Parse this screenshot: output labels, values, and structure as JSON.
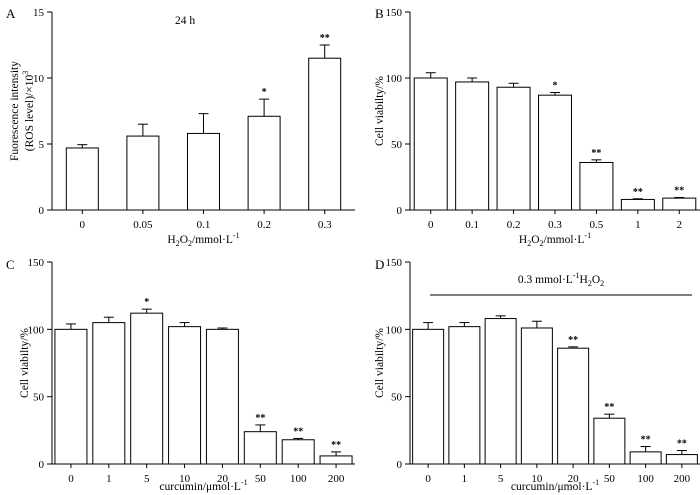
{
  "chart_data": [
    {
      "panel": "A",
      "type": "bar",
      "annotation": "24 h",
      "ylabel_lines": [
        "Fuorescence intensity",
        "(ROS level)/×10"
      ],
      "ylabel_sup": "3",
      "xlabel": {
        "parts": [
          {
            "t": "H"
          },
          {
            "t": "2",
            "sub": true
          },
          {
            "t": "O"
          },
          {
            "t": "2",
            "sub": true
          },
          {
            "t": "/mmol·L"
          },
          {
            "t": "-1",
            "sup": true
          }
        ]
      },
      "categories": [
        "0",
        "0.05",
        "0.1",
        "0.2",
        "0.3"
      ],
      "values": [
        4.7,
        5.6,
        5.8,
        7.1,
        11.5
      ],
      "errors": [
        0.25,
        0.9,
        1.5,
        1.3,
        1.0
      ],
      "significance": [
        "",
        "",
        "",
        "*",
        "**"
      ],
      "ylim": [
        0,
        15
      ],
      "yticks": [
        0,
        5,
        10,
        15
      ]
    },
    {
      "panel": "B",
      "type": "bar",
      "ylabel_lines": [
        "Cell viabilty/%"
      ],
      "xlabel": {
        "parts": [
          {
            "t": "H"
          },
          {
            "t": "2",
            "sub": true
          },
          {
            "t": "O"
          },
          {
            "t": "2",
            "sub": true
          },
          {
            "t": "/mmol·L"
          },
          {
            "t": "-1",
            "sup": true
          }
        ]
      },
      "categories": [
        "0",
        "0.1",
        "0.2",
        "0.3",
        "0.5",
        "1",
        "2"
      ],
      "values": [
        100,
        97,
        93,
        87,
        36,
        8,
        9
      ],
      "errors": [
        4,
        3,
        3,
        2,
        2,
        0.5,
        0.5
      ],
      "significance": [
        "",
        "",
        "",
        "*",
        "**",
        "**",
        "**"
      ],
      "ylim": [
        0,
        150
      ],
      "yticks": [
        0,
        50,
        100,
        150
      ]
    },
    {
      "panel": "C",
      "type": "bar",
      "ylabel_lines": [
        "Cell viabilty/%"
      ],
      "xlabel": {
        "parts": [
          {
            "t": "curcumin/μmol·L"
          },
          {
            "t": "-1",
            "sup": true
          }
        ]
      },
      "categories": [
        "0",
        "1",
        "5",
        "10",
        "20",
        "50",
        "100",
        "200"
      ],
      "values": [
        100,
        105,
        112,
        102,
        100,
        24,
        18,
        6
      ],
      "errors": [
        4,
        4,
        3,
        3,
        1,
        5,
        1,
        3
      ],
      "significance": [
        "",
        "",
        "*",
        "",
        "",
        "**",
        "**",
        "**"
      ],
      "ylim": [
        0,
        150
      ],
      "yticks": [
        0,
        50,
        100,
        150
      ]
    },
    {
      "panel": "D",
      "type": "bar",
      "ylabel_lines": [
        "Cell viabilty/%"
      ],
      "xlabel": {
        "parts": [
          {
            "t": "curcumin/μmol·L"
          },
          {
            "t": "-1",
            "sup": true
          }
        ]
      },
      "annotation_parts": [
        {
          "t": "0.3 mmol·L"
        },
        {
          "t": "-1",
          "sup": true
        },
        {
          "t": "H"
        },
        {
          "t": "2",
          "sub": true
        },
        {
          "t": "O"
        },
        {
          "t": "2",
          "sub": true
        }
      ],
      "categories": [
        "0",
        "1",
        "5",
        "10",
        "20",
        "50",
        "100",
        "200"
      ],
      "values": [
        100,
        102,
        108,
        101,
        86,
        34,
        9,
        7
      ],
      "errors": [
        5,
        3,
        2,
        5,
        1,
        3,
        4,
        3
      ],
      "significance": [
        "",
        "",
        "",
        "",
        "**",
        "**",
        "**",
        "**"
      ],
      "ylim": [
        0,
        150
      ],
      "yticks": [
        0,
        50,
        100,
        150
      ]
    }
  ]
}
